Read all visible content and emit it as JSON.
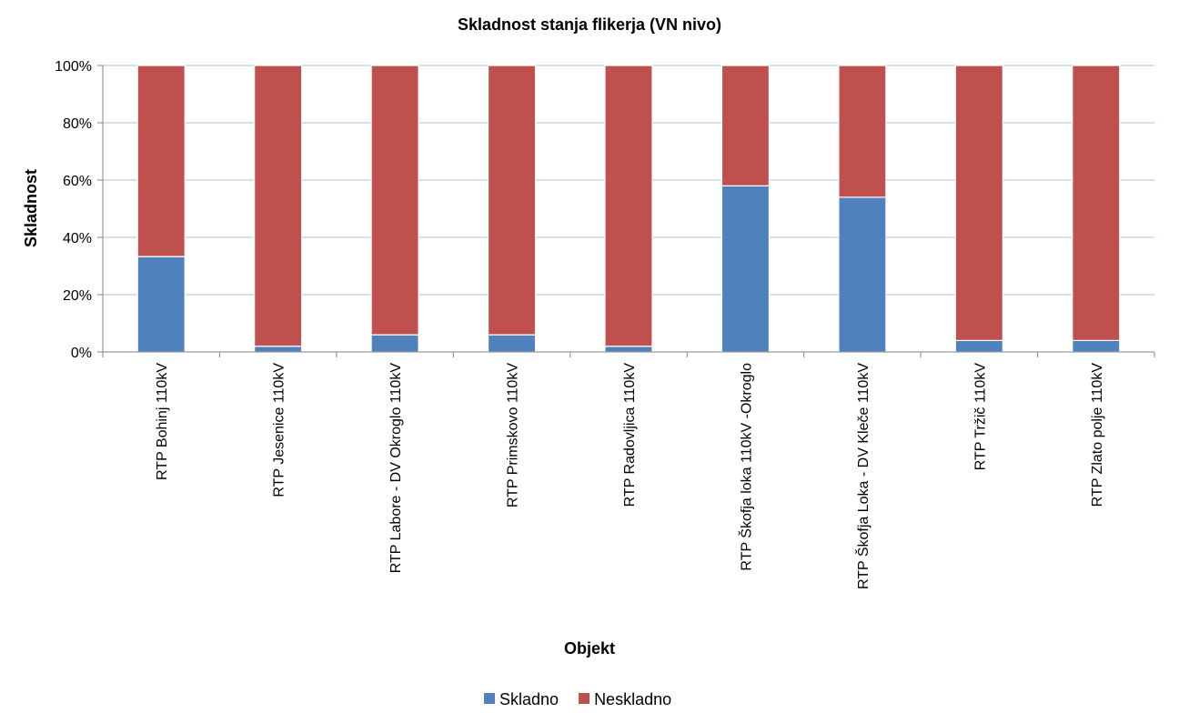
{
  "chart_data": {
    "type": "bar",
    "stacked": true,
    "title": "Skladnost stanja flikerja (VN nivo)",
    "xlabel": "Objekt",
    "ylabel": "Skladnost",
    "ylim": [
      0,
      100
    ],
    "yticks": [
      "0%",
      "20%",
      "40%",
      "60%",
      "80%",
      "100%"
    ],
    "categories": [
      "RTP Bohinj 110kV",
      "RTP Jesenice 110kV",
      "RTP Labore - DV Okroglo 110kV",
      "RTP Primskovo 110kV",
      "RTP Radovljica 110kV",
      "RTP Škofja loka 110kV -Okroglo",
      "RTP Škofja Loka - DV Kleče 110kV",
      "RTP Tržič 110kV",
      "RTP Zlato polje 110kV"
    ],
    "series": [
      {
        "name": "Skladno",
        "color": "#4f81bd",
        "values": [
          33.3,
          2,
          6,
          6,
          2,
          58,
          54,
          4,
          4
        ]
      },
      {
        "name": "Neskladno",
        "color": "#c0504d",
        "values": [
          66.7,
          98,
          94,
          94,
          98,
          42,
          46,
          96,
          96
        ]
      }
    ],
    "grid": true,
    "legend": "bottom"
  }
}
